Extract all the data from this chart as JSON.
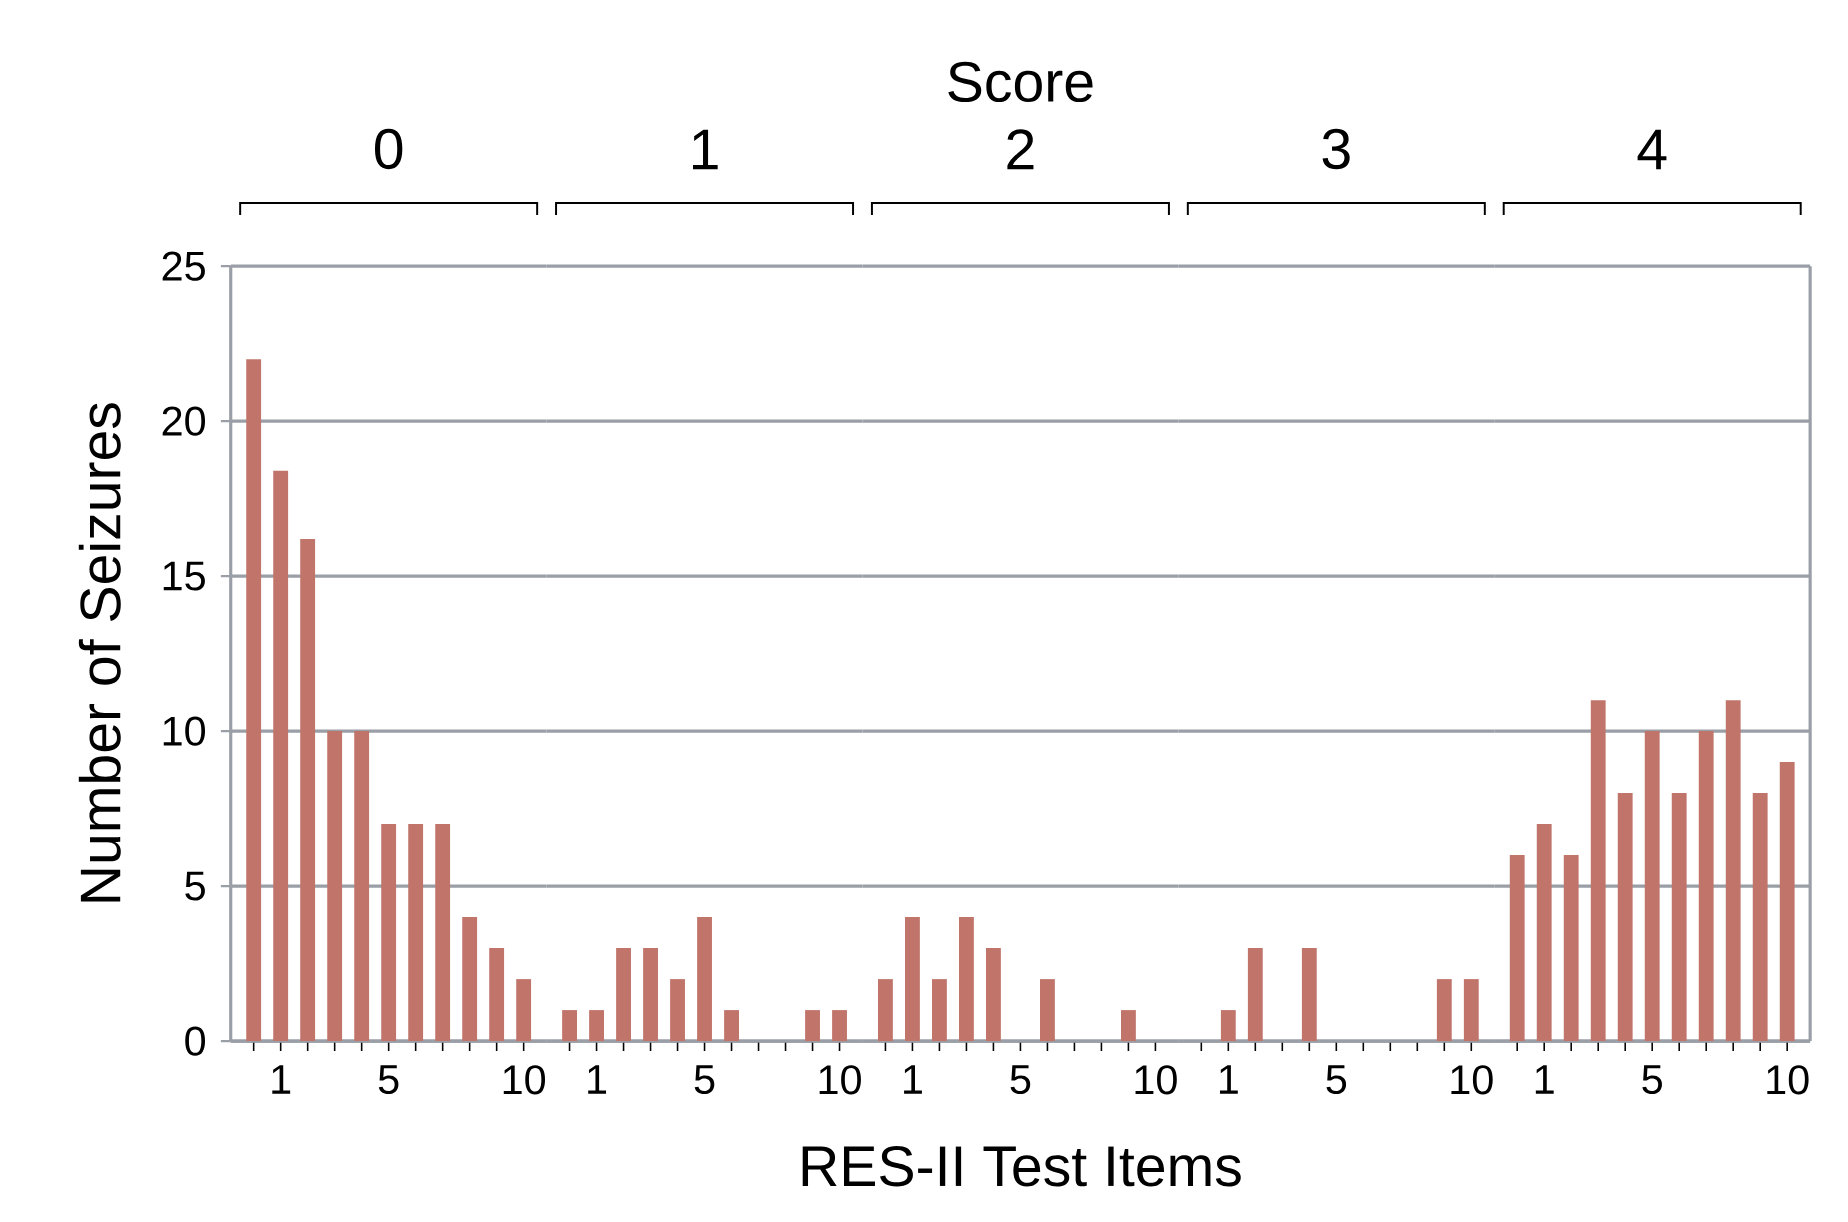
{
  "chart_data": [
    {
      "type": "bar",
      "title": "0",
      "ylabel": "Number of Seizures",
      "categories": [
        null,
        "1",
        null,
        null,
        null,
        "5",
        null,
        null,
        null,
        null,
        "10"
      ],
      "values": [
        22,
        18.4,
        16.2,
        10,
        10,
        7,
        7,
        7,
        4,
        3,
        2
      ],
      "color": "#c1756a",
      "ylim": [
        0,
        25
      ],
      "yticks": [
        0,
        5,
        10,
        15,
        20,
        25
      ],
      "grid": "y"
    },
    {
      "type": "bar",
      "title": "1",
      "categories": [
        null,
        "1",
        null,
        null,
        null,
        "5",
        null,
        null,
        null,
        null,
        "10"
      ],
      "values": [
        1,
        1,
        3,
        3,
        2,
        4,
        1,
        0,
        0,
        1,
        1
      ],
      "color": "#c1756a",
      "ylim": [
        0,
        25
      ],
      "yticks": [
        0,
        5,
        10,
        15,
        20,
        25
      ],
      "grid": "y",
      "tick_labels": "x"
    },
    {
      "type": "bar",
      "title": "2",
      "xlabel": "RES-II Test Items",
      "annotations": [
        "Score"
      ],
      "categories": [
        null,
        "1",
        null,
        null,
        null,
        "5",
        null,
        null,
        null,
        null,
        "10"
      ],
      "values": [
        2,
        4,
        2,
        4,
        3,
        0,
        2,
        0,
        0,
        1,
        0
      ],
      "color": "#c1756a",
      "ylim": [
        0,
        25
      ],
      "yticks": [
        0,
        5,
        10,
        15,
        20,
        25
      ],
      "grid": "y",
      "tick_labels": "x"
    },
    {
      "type": "bar",
      "title": "3",
      "categories": [
        null,
        "1",
        null,
        null,
        null,
        "5",
        null,
        null,
        null,
        null,
        "10"
      ],
      "values": [
        0,
        1,
        3,
        0,
        3,
        0,
        0,
        0,
        0,
        2,
        2
      ],
      "color": "#c1756a",
      "ylim": [
        0,
        25
      ],
      "yticks": [
        0,
        5,
        10,
        15,
        20,
        25
      ],
      "grid": "y",
      "tick_labels": "x"
    },
    {
      "type": "bar",
      "title": "4",
      "categories": [
        null,
        "1",
        null,
        null,
        null,
        "5",
        null,
        null,
        null,
        null,
        "10"
      ],
      "values": [
        6,
        7,
        6,
        11,
        8,
        10,
        8,
        10,
        11,
        8,
        9
      ],
      "color": "#c1756a",
      "ylim": [
        0,
        25
      ],
      "yticks": [
        0,
        5,
        10,
        15,
        20,
        25
      ],
      "grid": "y",
      "tick_labels": "x"
    }
  ]
}
